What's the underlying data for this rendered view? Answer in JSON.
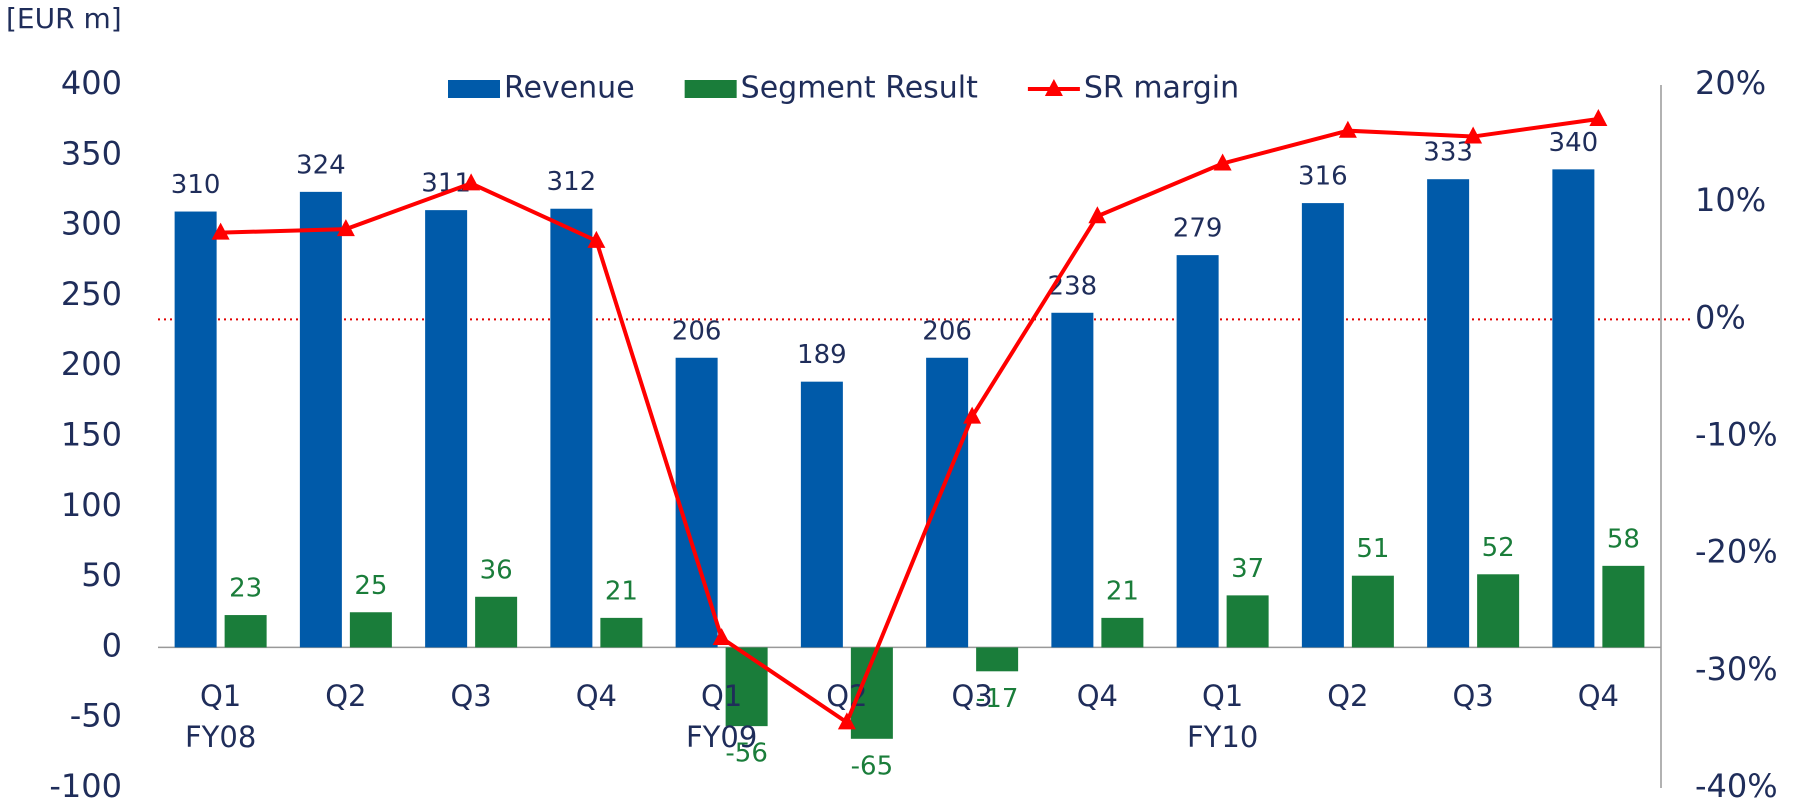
{
  "chart_data": {
    "type": "bar_line",
    "y_label": "[EUR m]",
    "categories": [
      "Q1",
      "Q2",
      "Q3",
      "Q4",
      "Q1",
      "Q2",
      "Q3",
      "Q4",
      "Q1",
      "Q2",
      "Q3",
      "Q4"
    ],
    "category_groups": [
      "FY08",
      null,
      null,
      null,
      "FY09",
      null,
      null,
      null,
      "FY10",
      null,
      null,
      null
    ],
    "series": [
      {
        "name": "Revenue",
        "type": "bar",
        "color": "#005aa9",
        "values": [
          310,
          324,
          311,
          312,
          206,
          189,
          206,
          238,
          279,
          316,
          333,
          340
        ]
      },
      {
        "name": "Segment Result",
        "type": "bar",
        "color": "#1a7d3a",
        "values": [
          23,
          25,
          36,
          21,
          -56,
          -65,
          -17,
          21,
          37,
          51,
          52,
          58
        ]
      },
      {
        "name": "SR margin",
        "type": "line",
        "axis": "y2",
        "color": "#ff0000",
        "values": [
          7.4,
          7.7,
          11.6,
          6.7,
          -27.2,
          -34.4,
          -8.3,
          8.8,
          13.3,
          16.1,
          15.6,
          17.1
        ]
      }
    ],
    "ylim": [
      -100,
      400
    ],
    "yticks": [
      -100,
      -50,
      0,
      50,
      100,
      150,
      200,
      250,
      300,
      350,
      400
    ],
    "y2lim": [
      -40,
      20
    ],
    "y2ticks": [
      {
        "value": -40,
        "label": "-40%"
      },
      {
        "value": -30,
        "label": "-30%"
      },
      {
        "value": -20,
        "label": "-20%"
      },
      {
        "value": -10,
        "label": "-10%"
      },
      {
        "value": 0,
        "label": "0%"
      },
      {
        "value": 10,
        "label": "10%"
      },
      {
        "value": 20,
        "label": "20%"
      }
    ],
    "y2_zero_line": true,
    "zero_line_color": "#e00000",
    "legend": "top"
  }
}
